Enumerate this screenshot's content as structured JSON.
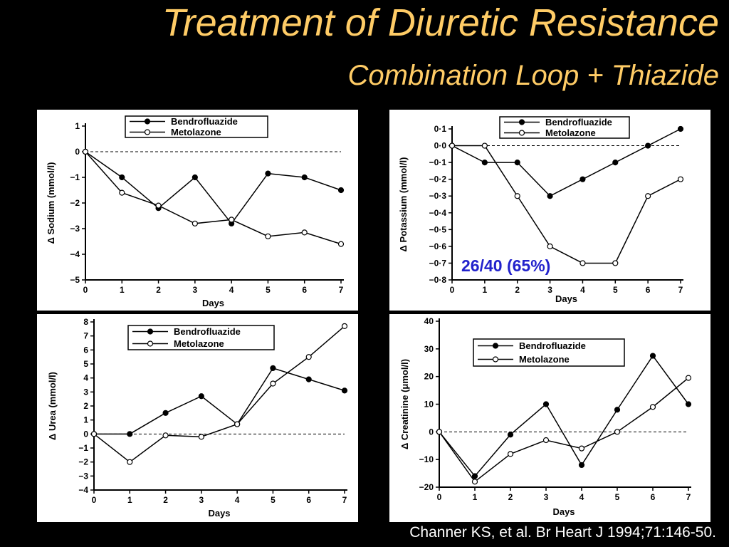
{
  "slide": {
    "title": "Treatment of Diuretic Resistance",
    "subtitle": "Combination Loop + Thiazide",
    "citation": "Channer KS, et al. Br Heart J 1994;71:146-50.",
    "annotation": "26/40 (65%)"
  },
  "chart_data": [
    {
      "type": "line",
      "title": "",
      "xlabel": "Days",
      "ylabel": "Δ Sodium (mmol/l)",
      "x": [
        0,
        1,
        2,
        3,
        4,
        5,
        6,
        7
      ],
      "xlim": [
        0,
        7
      ],
      "ylim": [
        -5,
        1
      ],
      "yticks": [
        1,
        0,
        -1,
        -2,
        -3,
        -4,
        -5
      ],
      "ytick_labels": [
        "1",
        "0",
        "−1",
        "−2",
        "−3",
        "−4",
        "−5"
      ],
      "reference_line": 0,
      "legend": "top",
      "series": [
        {
          "name": "Bendrofluazide",
          "marker": "filled",
          "values": [
            0,
            -1.0,
            -2.2,
            -1.0,
            -2.8,
            -0.85,
            -1.0,
            -1.5
          ]
        },
        {
          "name": "Metolazone",
          "marker": "open",
          "values": [
            0,
            -1.6,
            -2.1,
            -2.8,
            -2.65,
            -3.3,
            -3.15,
            -3.6
          ]
        }
      ]
    },
    {
      "type": "line",
      "title": "",
      "xlabel": "Days",
      "ylabel": "Δ Potassium (mmol/l)",
      "x": [
        0,
        1,
        2,
        3,
        4,
        5,
        6,
        7
      ],
      "xlim": [
        0,
        7
      ],
      "ylim": [
        -0.8,
        0.1
      ],
      "yticks": [
        0.1,
        0,
        -0.1,
        -0.2,
        -0.3,
        -0.4,
        -0.5,
        -0.6,
        -0.7,
        -0.8
      ],
      "ytick_labels": [
        "0·1",
        "0·0",
        "−0·1",
        "−0·2",
        "−0·3",
        "−0·4",
        "−0·5",
        "−0·6",
        "−0·7",
        "−0·8"
      ],
      "reference_line": 0,
      "legend": "top",
      "series": [
        {
          "name": "Bendrofluazide",
          "marker": "filled",
          "values": [
            0,
            -0.1,
            -0.1,
            -0.3,
            -0.2,
            -0.1,
            0.0,
            0.1
          ]
        },
        {
          "name": "Metolazone",
          "marker": "open",
          "values": [
            0,
            0.0,
            -0.3,
            -0.6,
            -0.7,
            -0.7,
            -0.3,
            -0.2
          ]
        }
      ]
    },
    {
      "type": "line",
      "title": "",
      "xlabel": "Days",
      "ylabel": "Δ Urea (mmol/l)",
      "x": [
        0,
        1,
        2,
        3,
        4,
        5,
        6,
        7
      ],
      "xlim": [
        0,
        7
      ],
      "ylim": [
        -4,
        8
      ],
      "yticks": [
        8,
        7,
        6,
        5,
        4,
        3,
        2,
        1,
        0,
        -1,
        -2,
        -3,
        -4
      ],
      "ytick_labels": [
        "8",
        "7",
        "6",
        "5",
        "4",
        "3",
        "2",
        "1",
        "0",
        "−1",
        "−2",
        "−3",
        "−4"
      ],
      "reference_line": 0,
      "legend": "top",
      "series": [
        {
          "name": "Bendrofluazide",
          "marker": "filled",
          "values": [
            0,
            0,
            1.5,
            2.7,
            0.7,
            4.7,
            3.9,
            3.1
          ]
        },
        {
          "name": "Metolazone",
          "marker": "open",
          "values": [
            0,
            -2.0,
            -0.1,
            -0.2,
            0.7,
            3.6,
            5.5,
            7.7
          ]
        }
      ]
    },
    {
      "type": "line",
      "title": "",
      "xlabel": "Days",
      "ylabel": "Δ Creatinine (μmol/l)",
      "x": [
        0,
        1,
        2,
        3,
        4,
        5,
        6,
        7
      ],
      "xlim": [
        0,
        7
      ],
      "ylim": [
        -20,
        40
      ],
      "yticks": [
        40,
        30,
        20,
        10,
        0,
        -10,
        -20
      ],
      "ytick_labels": [
        "40",
        "30",
        "20",
        "10",
        "0",
        "−10",
        "−20"
      ],
      "reference_line": 0,
      "legend": "top",
      "series": [
        {
          "name": "Bendrofluazide",
          "marker": "filled",
          "values": [
            0,
            -16,
            -1,
            10,
            -12,
            8,
            27.5,
            10
          ]
        },
        {
          "name": "Metolazone",
          "marker": "open",
          "values": [
            0,
            -18,
            -8,
            -3,
            -6,
            0,
            9,
            19.5
          ]
        }
      ]
    }
  ]
}
